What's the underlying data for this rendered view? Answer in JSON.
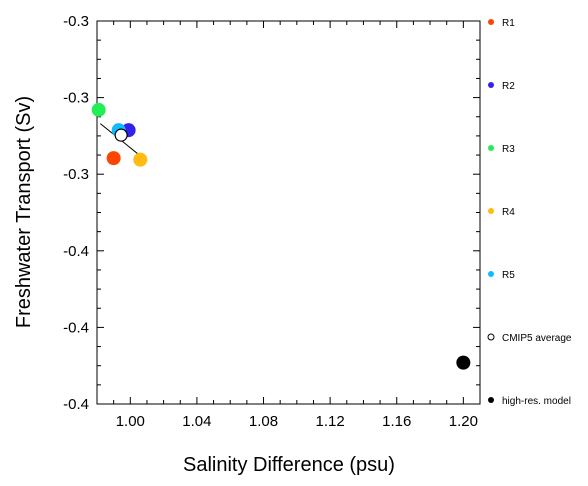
{
  "chart_data": {
    "type": "scatter",
    "xlabel": "Salinity Difference (psu)",
    "ylabel": "Freshwater Transport (Sv)",
    "xlim": [
      0.98,
      1.21
    ],
    "ylim": [
      -0.4,
      -0.3
    ],
    "xticks": [
      1.0,
      1.04,
      1.08,
      1.12,
      1.16,
      1.2
    ],
    "xtick_labels": [
      "1.00",
      "1.04",
      "1.08",
      "1.12",
      "1.16",
      "1.20"
    ],
    "yticks": [
      -0.3,
      -0.32,
      -0.34,
      -0.36,
      -0.38,
      -0.4
    ],
    "ytick_labels": [
      "-0.3",
      "-0.3",
      "-0.3",
      "-0.4",
      "-0.4",
      "-0.4"
    ],
    "grid": false,
    "legend_position": "right",
    "series": [
      {
        "name": "R1",
        "color": "#ff4400",
        "fill": true,
        "x": 0.99,
        "y": -0.3358
      },
      {
        "name": "R2",
        "color": "#3322ee",
        "fill": true,
        "x": 0.999,
        "y": -0.3285
      },
      {
        "name": "R3",
        "color": "#22ee55",
        "fill": true,
        "x": 0.981,
        "y": -0.3232
      },
      {
        "name": "R4",
        "color": "#ffbb11",
        "fill": true,
        "x": 1.006,
        "y": -0.3362
      },
      {
        "name": "R5",
        "color": "#11bbff",
        "fill": true,
        "x": 0.993,
        "y": -0.3285
      },
      {
        "name": "CMIP5 average",
        "color": "#000000",
        "fill": false,
        "x": 0.9945,
        "y": -0.3298
      },
      {
        "name": "high-res. model",
        "color": "#000000",
        "fill": true,
        "x": 1.2,
        "y": -0.3892
      }
    ],
    "regression_line": {
      "x": [
        0.982,
        1.006
      ],
      "y": [
        -0.3268,
        -0.3352
      ],
      "color": "#000000"
    }
  }
}
